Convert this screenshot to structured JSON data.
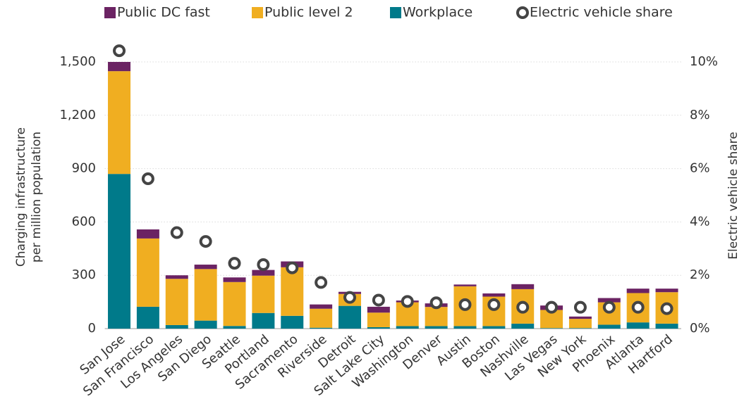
{
  "chart_data": {
    "type": "bar",
    "stacked": true,
    "ylabel": [
      "Charging infrastructure",
      "per million population"
    ],
    "y2label": "Electric vehicle share",
    "categories": [
      "San Jose",
      "San Francisco",
      "Los Angeles",
      "San Diego",
      "Seattle",
      "Portland",
      "Sacramento",
      "Riverside",
      "Detroit",
      "Salt Lake City",
      "Washington",
      "Denver",
      "Austin",
      "Boston",
      "Nashville",
      "Las Vegas",
      "New York",
      "Phoenix",
      "Atlanta",
      "Hartford"
    ],
    "series": [
      {
        "name": "Public DC fast",
        "color": "#6b2363",
        "values": [
          52,
          51,
          20,
          25,
          26,
          32,
          33,
          24,
          12,
          33,
          10,
          20,
          10,
          18,
          28,
          25,
          13,
          24,
          25,
          20
        ]
      },
      {
        "name": "Public level 2",
        "color": "#f0ae21",
        "values": [
          578,
          384,
          260,
          290,
          247,
          210,
          273,
          107,
          67,
          82,
          134,
          108,
          224,
          166,
          194,
          102,
          52,
          126,
          165,
          177
        ]
      },
      {
        "name": "Workplace",
        "color": "#007a8a",
        "values": [
          870,
          123,
          20,
          45,
          15,
          88,
          72,
          5,
          128,
          8,
          14,
          14,
          14,
          14,
          28,
          3,
          3,
          22,
          35,
          28
        ]
      },
      {
        "name": "Electric vehicle share",
        "color": "#ffffff",
        "stroke": "#444444",
        "marker": "circle",
        "axis": "y2",
        "values": [
          10.42,
          5.62,
          3.6,
          3.27,
          2.45,
          2.4,
          2.28,
          1.73,
          1.17,
          1.07,
          1.02,
          0.97,
          0.9,
          0.9,
          0.8,
          0.8,
          0.8,
          0.8,
          0.8,
          0.75
        ]
      }
    ],
    "ylim": [
      0,
      1500
    ],
    "yticks": [
      0,
      300,
      600,
      900,
      {
        "value": 1200,
        "label": "1,200"
      },
      {
        "value": 1500,
        "label": "1,500"
      }
    ],
    "y2lim": [
      0,
      10
    ],
    "y2ticks": [
      {
        "value": 0,
        "label": "0%"
      },
      {
        "value": 2,
        "label": "2%"
      },
      {
        "value": 4,
        "label": "4%"
      },
      {
        "value": 6,
        "label": "6%"
      },
      {
        "value": 8,
        "label": "8%"
      },
      {
        "value": 10,
        "label": "10%"
      }
    ],
    "grid": true,
    "legend": "top"
  }
}
